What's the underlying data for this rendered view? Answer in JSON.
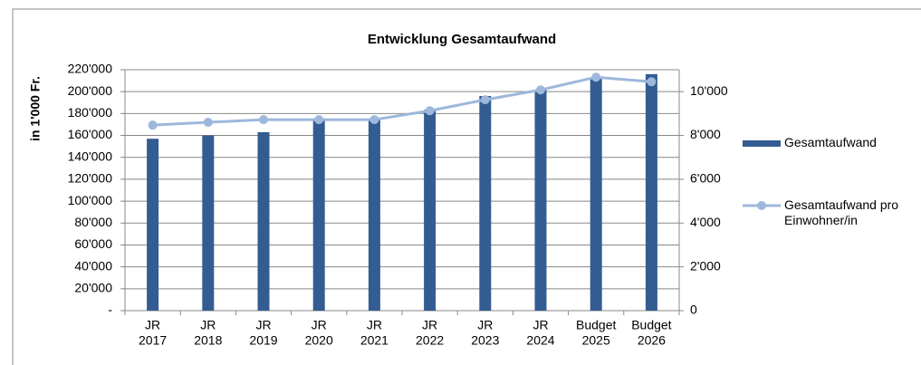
{
  "chart_data": {
    "type": "bar_line",
    "title": "Entwicklung  Gesamtaufwand",
    "ylabel": "in 1'000 Fr.",
    "categories": [
      [
        "JR",
        "2017"
      ],
      [
        "JR",
        "2018"
      ],
      [
        "JR",
        "2019"
      ],
      [
        "JR",
        "2020"
      ],
      [
        "JR",
        "2021"
      ],
      [
        "JR",
        "2022"
      ],
      [
        "JR",
        "2023"
      ],
      [
        "JR",
        "2024"
      ],
      [
        "Budget",
        "2025"
      ],
      [
        "Budget",
        "2026"
      ]
    ],
    "series": [
      {
        "name": "Gesamtaufwand",
        "type": "bar",
        "color": "#335c92",
        "values": [
          157000,
          160000,
          163000,
          173500,
          174000,
          183500,
          196000,
          202000,
          212000,
          216000
        ]
      },
      {
        "name": "Gesamtaufwand pro Einwohner/in",
        "type": "line",
        "axis": "y2",
        "color": "#9db8dc",
        "values": [
          8470,
          8600,
          8720,
          8720,
          8720,
          9130,
          9630,
          10080,
          10660,
          10450
        ]
      }
    ],
    "ylim": [
      0,
      220000
    ],
    "yticks": [
      {
        "value": 0,
        "label": "-"
      },
      {
        "value": 20000,
        "label": "20'000"
      },
      {
        "value": 40000,
        "label": "40'000"
      },
      {
        "value": 60000,
        "label": "60'000"
      },
      {
        "value": 80000,
        "label": "80'000"
      },
      {
        "value": 100000,
        "label": "100'000"
      },
      {
        "value": 120000,
        "label": "120'000"
      },
      {
        "value": 140000,
        "label": "140'000"
      },
      {
        "value": 160000,
        "label": "160'000"
      },
      {
        "value": 180000,
        "label": "180'000"
      },
      {
        "value": 200000,
        "label": "200'000"
      },
      {
        "value": 220000,
        "label": "220'000"
      }
    ],
    "y2lim": [
      0,
      11000
    ],
    "y2ticks": [
      0,
      {
        "value": 2000,
        "label": "2'000"
      },
      {
        "value": 4000,
        "label": "4'000"
      },
      {
        "value": 6000,
        "label": "6'000"
      },
      {
        "value": 8000,
        "label": "8'000"
      },
      {
        "value": 10000,
        "label": "10'000"
      }
    ],
    "grid": true,
    "legend": "right"
  }
}
